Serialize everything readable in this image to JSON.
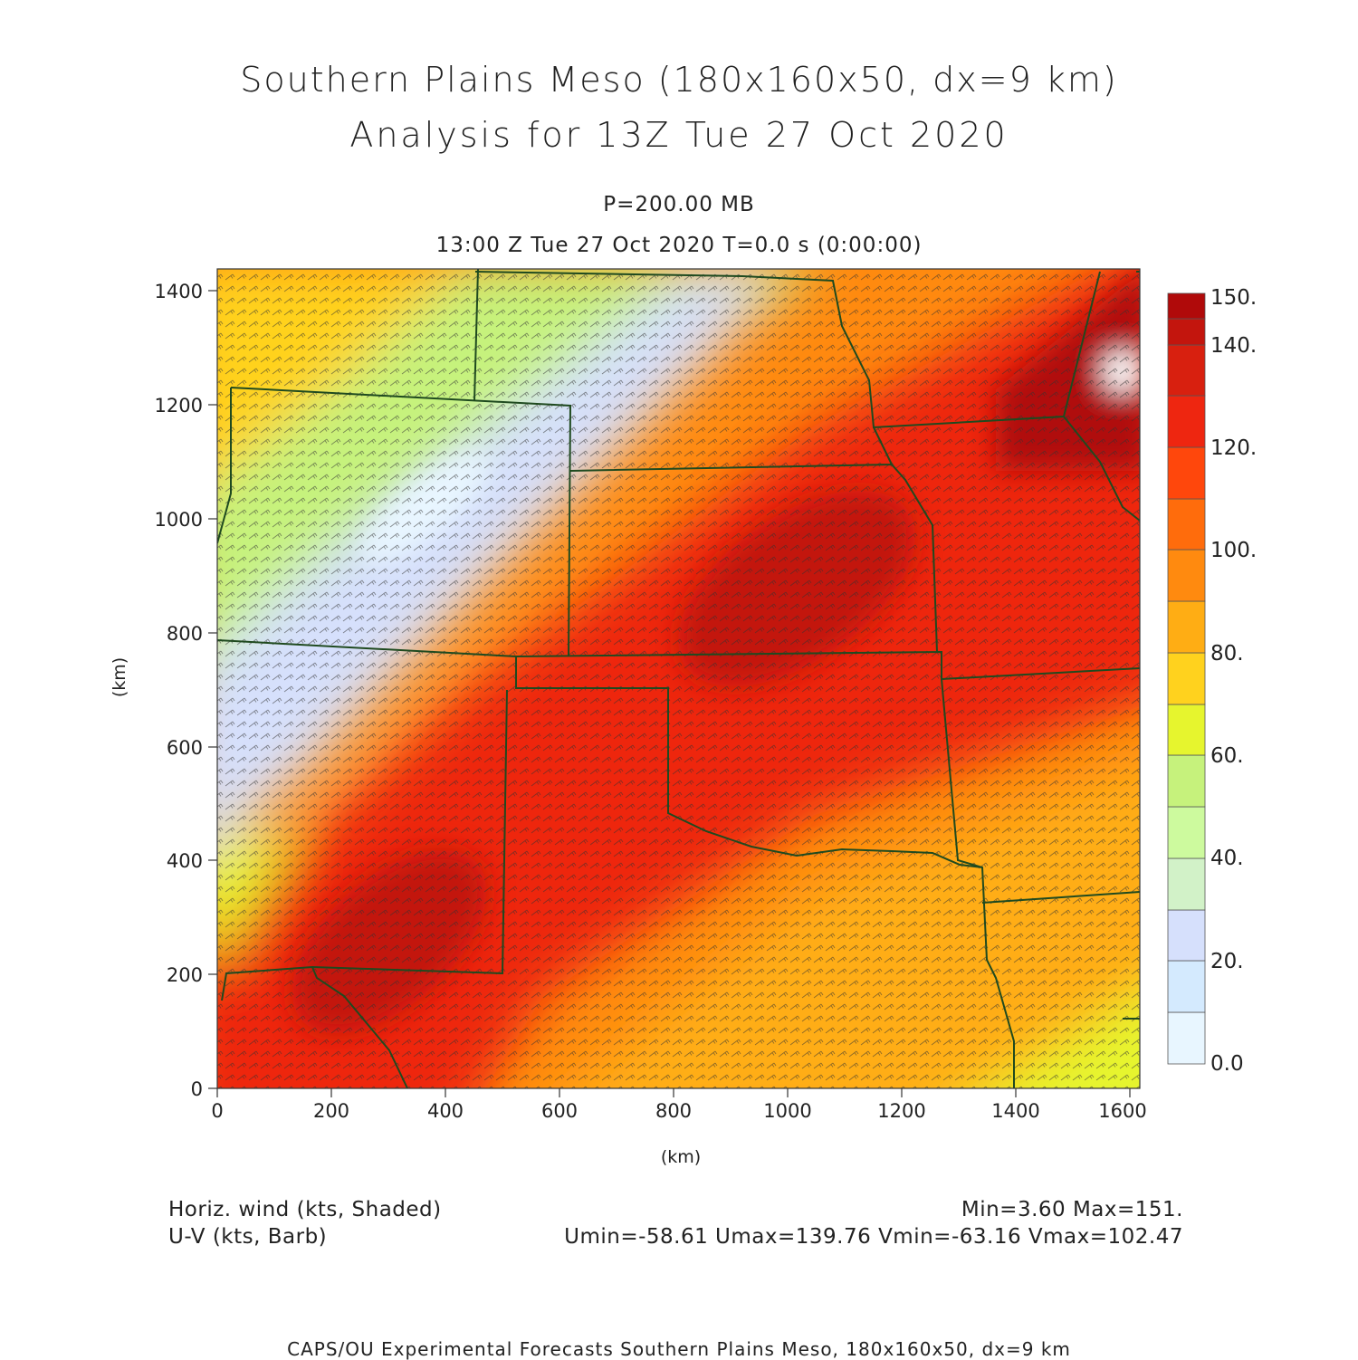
{
  "title": {
    "line1": "Southern Plains Meso (180x160x50, dx=9 km)",
    "line2": "Analysis for 13Z Tue 27 Oct 2020"
  },
  "subtitle": {
    "level": "P=200.00 MB",
    "time": "13:00 Z Tue 27 Oct 2020    T=0.0 s (0:00:00)"
  },
  "axes": {
    "xlabel": "(km)",
    "ylabel": "(km)",
    "xticks": [
      "0",
      "200",
      "400",
      "600",
      "800",
      "1000",
      "1200",
      "1400",
      "1600"
    ],
    "yticks": [
      "0",
      "200",
      "400",
      "600",
      "800",
      "1000",
      "1200",
      "1400"
    ],
    "x_range": [
      0,
      1620
    ],
    "y_range": [
      0,
      1440
    ]
  },
  "colorbar": {
    "labels": [
      "0.0",
      "20.",
      "40.",
      "60.",
      "80.",
      "100.",
      "120.",
      "140.",
      "150."
    ],
    "colors": [
      "#e8f6ff",
      "#d4eafe",
      "#d6e0fc",
      "#d2f2c8",
      "#cdfa9e",
      "#c6f27c",
      "#e6f52e",
      "#ffd21e",
      "#ffad14",
      "#ff8a0f",
      "#ff6c0c",
      "#ff470c",
      "#ee2610",
      "#d8200f",
      "#c3150d",
      "#b00a0a"
    ]
  },
  "footer": {
    "field1": "Horiz. wind (kts, Shaded)",
    "field2": "U-V (kts, Barb)",
    "minmax": "Min=3.60 Max=151.",
    "uv_stats": "Umin=-58.61 Umax=139.76 Vmin=-63.16 Vmax=102.47",
    "credit": "CAPS/OU Experimental Forecasts  Southern Plains Meso, 180x160x50, dx=9 km"
  },
  "map": {
    "field": "horizontal wind speed at 200 mb",
    "units": "kts",
    "jet_axis": "southwest to northeast",
    "max_region": "northeast corner",
    "min_region": "northwest"
  }
}
